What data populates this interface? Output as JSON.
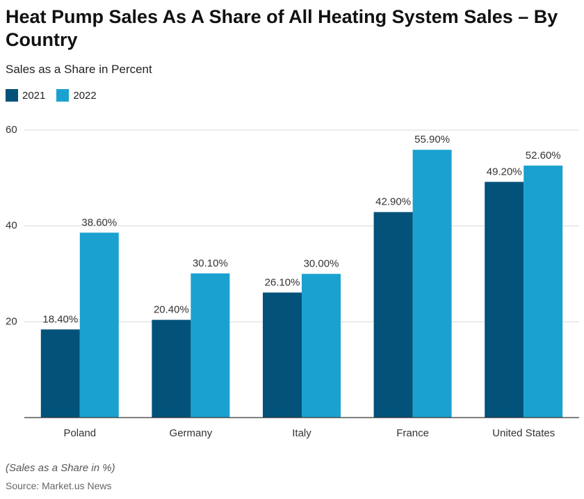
{
  "chart_data": {
    "type": "bar",
    "title": "Heat Pump Sales As A Share of All Heating System Sales – By Country",
    "subtitle": "Sales as a Share in Percent",
    "categories": [
      "Poland",
      "Germany",
      "Italy",
      "France",
      "United States"
    ],
    "series": [
      {
        "name": "2021",
        "color": "#02527a",
        "values": [
          18.4,
          20.4,
          26.1,
          42.9,
          49.2
        ],
        "value_labels": [
          "18.40%",
          "20.40%",
          "26.10%",
          "42.90%",
          "49.20%"
        ]
      },
      {
        "name": "2022",
        "color": "#1ba1d0",
        "values": [
          38.6,
          30.1,
          30.0,
          55.9,
          52.6
        ],
        "value_labels": [
          "38.60%",
          "30.10%",
          "30.00%",
          "55.90%",
          "52.60%"
        ]
      }
    ],
    "ylim": [
      0,
      60
    ],
    "yticks": [
      20,
      40,
      60
    ],
    "grid": true,
    "note": "(Sales as a Share in %)",
    "source": "Source: Market.us News"
  }
}
